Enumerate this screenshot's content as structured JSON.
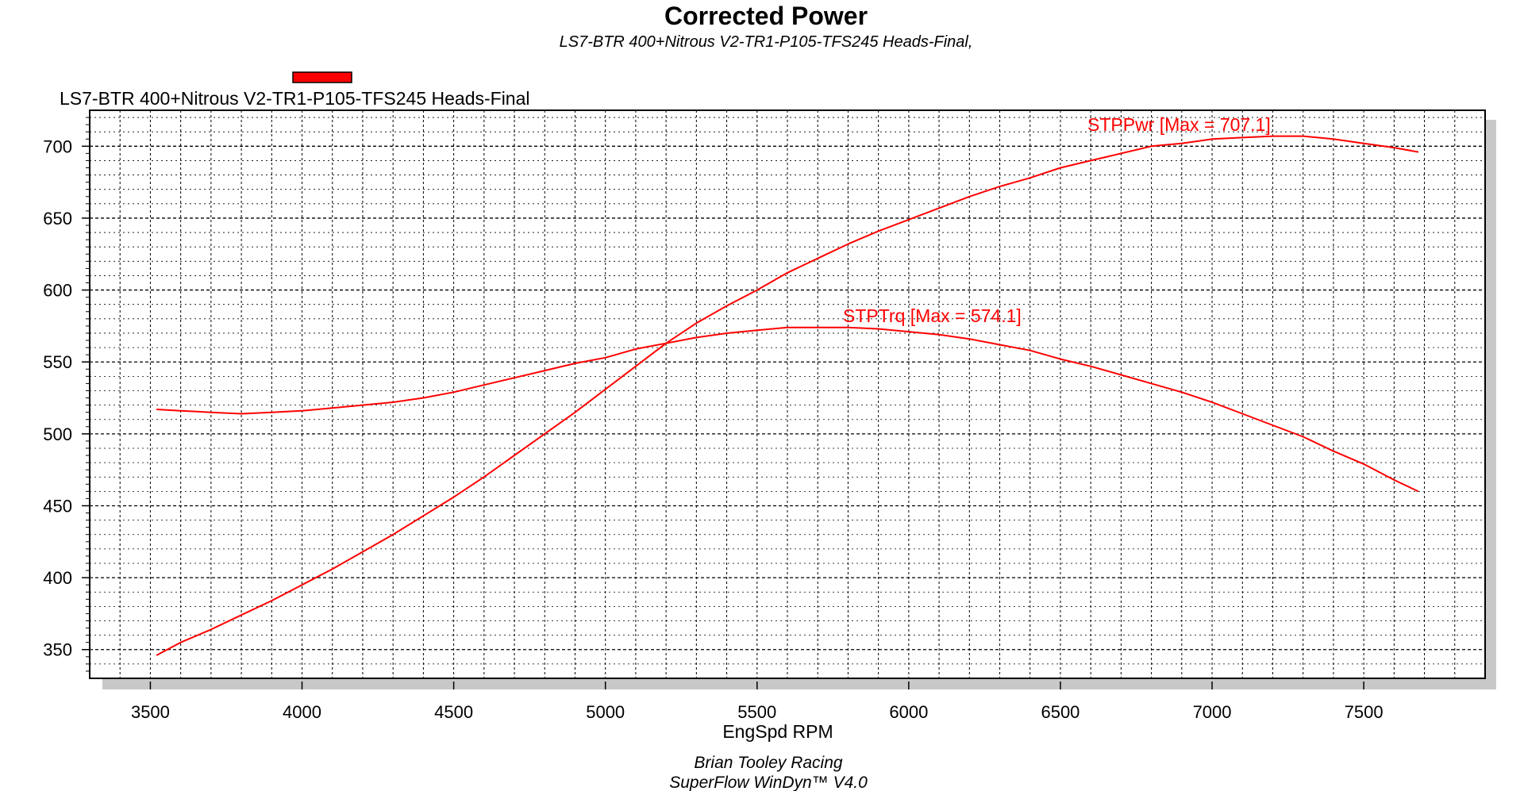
{
  "chart_data": {
    "type": "line",
    "title": "Corrected Power",
    "subtitle": "LS7-BTR 400+Nitrous V2-TR1-P105-TFS245 Heads-Final,",
    "legend": [
      {
        "label": "LS7-BTR 400+Nitrous V2-TR1-P105-TFS245 Heads-Final",
        "color": "#ff0000"
      }
    ],
    "xlabel": "EngSpd RPM",
    "ylabel": "",
    "xlim": [
      3300,
      7900
    ],
    "ylim": [
      330,
      725
    ],
    "x_ticks": [
      3500,
      4000,
      4500,
      5000,
      5500,
      6000,
      6500,
      7000,
      7500
    ],
    "y_ticks": [
      350,
      400,
      450,
      500,
      550,
      600,
      650,
      700
    ],
    "grid": true,
    "footer": [
      "Brian Tooley Racing",
      "SuperFlow WinDyn™  V4.0"
    ],
    "series": [
      {
        "name": "STPPwr",
        "annotation": "STPPwr [Max = 707.1]",
        "color": "#ff0000",
        "x": [
          3520,
          3600,
          3700,
          3800,
          3900,
          4000,
          4100,
          4200,
          4300,
          4400,
          4500,
          4600,
          4700,
          4800,
          4900,
          5000,
          5100,
          5200,
          5300,
          5400,
          5500,
          5600,
          5700,
          5800,
          5900,
          6000,
          6100,
          6200,
          6300,
          6400,
          6500,
          6600,
          6700,
          6800,
          6900,
          7000,
          7100,
          7200,
          7300,
          7400,
          7500,
          7600,
          7680
        ],
        "y": [
          346,
          355,
          364,
          374,
          384,
          395,
          406,
          418,
          430,
          443,
          456,
          470,
          485,
          500,
          515,
          531,
          547,
          563,
          577,
          589,
          600,
          612,
          622,
          632,
          641,
          649,
          657,
          665,
          672,
          678,
          685,
          690,
          695,
          700,
          702,
          705,
          706,
          707,
          707,
          705,
          702,
          699,
          696
        ]
      },
      {
        "name": "STPTrq",
        "annotation": "STPTrq [Max = 574.1]",
        "color": "#ff0000",
        "x": [
          3520,
          3600,
          3700,
          3800,
          3900,
          4000,
          4100,
          4200,
          4300,
          4400,
          4500,
          4600,
          4700,
          4800,
          4900,
          5000,
          5100,
          5200,
          5300,
          5400,
          5500,
          5600,
          5700,
          5800,
          5900,
          6000,
          6100,
          6200,
          6300,
          6400,
          6500,
          6600,
          6700,
          6800,
          6900,
          7000,
          7100,
          7200,
          7300,
          7400,
          7500,
          7600,
          7680
        ],
        "y": [
          517,
          516,
          515,
          514,
          515,
          516,
          518,
          520,
          522,
          525,
          529,
          534,
          539,
          544,
          549,
          553,
          559,
          563,
          567,
          570,
          572,
          574,
          574,
          574,
          573,
          571,
          569,
          566,
          562,
          558,
          552,
          547,
          541,
          535,
          529,
          522,
          514,
          506,
          498,
          488,
          479,
          468,
          460
        ]
      }
    ]
  }
}
